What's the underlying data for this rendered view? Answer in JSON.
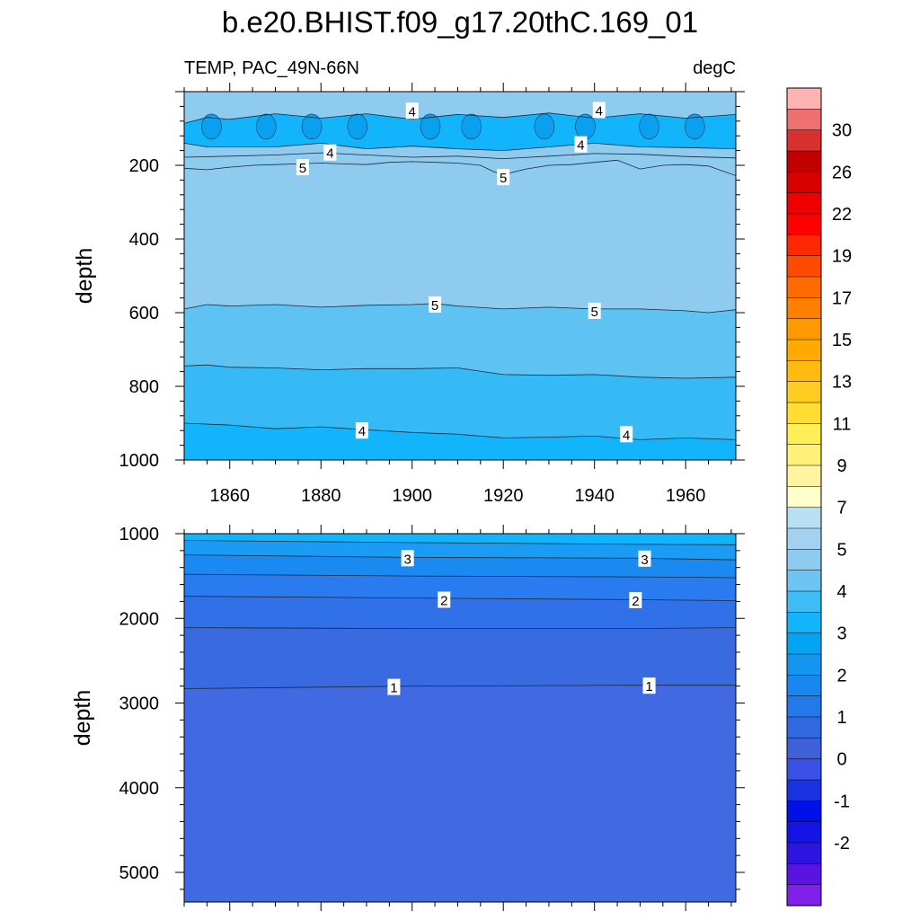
{
  "title": "b.e20.BHIST.f09_g17.20thC.169_01",
  "variable_label": "TEMP, PAC_49N-66N",
  "units_label": "degC",
  "chart_data": [
    {
      "type": "heatmap",
      "panel": "upper",
      "xlabel": "",
      "ylabel": "depth",
      "xlim": [
        1850,
        1971
      ],
      "ylim": [
        0,
        1000
      ],
      "y_inverted": true,
      "x_ticks": [
        "1860",
        "1880",
        "1900",
        "1920",
        "1940",
        "1960"
      ],
      "y_ticks": [
        "200",
        "400",
        "600",
        "800",
        "1000"
      ],
      "contours": [
        {
          "level": "4",
          "points": [
            [
              1850,
              86
            ],
            [
              1855,
              70
            ],
            [
              1860,
              75
            ],
            [
              1870,
              60
            ],
            [
              1880,
              72
            ],
            [
              1890,
              60
            ],
            [
              1900,
              75
            ],
            [
              1910,
              62
            ],
            [
              1920,
              70
            ],
            [
              1930,
              58
            ],
            [
              1940,
              72
            ],
            [
              1950,
              60
            ],
            [
              1960,
              72
            ],
            [
              1971,
              62
            ]
          ]
        },
        {
          "level": "4",
          "points": [
            [
              1850,
              140
            ],
            [
              1855,
              150
            ],
            [
              1860,
              150
            ],
            [
              1870,
              150
            ],
            [
              1880,
              140
            ],
            [
              1890,
              155
            ],
            [
              1900,
              148
            ],
            [
              1910,
              155
            ],
            [
              1920,
              160
            ],
            [
              1930,
              150
            ],
            [
              1940,
              140
            ],
            [
              1950,
              150
            ],
            [
              1960,
              152
            ],
            [
              1971,
              155
            ]
          ]
        },
        {
          "level": "4",
          "points": [
            [
              1850,
              178
            ],
            [
              1860,
              175
            ],
            [
              1870,
              172
            ],
            [
              1880,
              166
            ],
            [
              1890,
              172
            ],
            [
              1900,
              178
            ],
            [
              1910,
              175
            ],
            [
              1920,
              182
            ],
            [
              1930,
              175
            ],
            [
              1940,
              168
            ],
            [
              1950,
              170
            ],
            [
              1960,
              176
            ],
            [
              1971,
              180
            ]
          ]
        },
        {
          "level": "5",
          "points": [
            [
              1850,
              208
            ],
            [
              1855,
              212
            ],
            [
              1860,
              205
            ],
            [
              1865,
              200
            ],
            [
              1870,
              198
            ],
            [
              1875,
              196
            ],
            [
              1880,
              194
            ],
            [
              1885,
              196
            ],
            [
              1890,
              198
            ],
            [
              1895,
              192
            ],
            [
              1900,
              190
            ],
            [
              1905,
              192
            ],
            [
              1910,
              194
            ],
            [
              1915,
              200
            ],
            [
              1918,
              218
            ],
            [
              1920,
              225
            ],
            [
              1925,
              210
            ],
            [
              1930,
              200
            ],
            [
              1935,
              198
            ],
            [
              1940,
              192
            ],
            [
              1945,
              186
            ],
            [
              1950,
              210
            ],
            [
              1955,
              200
            ],
            [
              1960,
              198
            ],
            [
              1965,
              202
            ],
            [
              1971,
              228
            ]
          ]
        },
        {
          "level": "5",
          "points": [
            [
              1850,
              590
            ],
            [
              1855,
              578
            ],
            [
              1860,
              582
            ],
            [
              1870,
              578
            ],
            [
              1880,
              585
            ],
            [
              1890,
              580
            ],
            [
              1900,
              578
            ],
            [
              1905,
              575
            ],
            [
              1910,
              582
            ],
            [
              1920,
              590
            ],
            [
              1930,
              585
            ],
            [
              1940,
              590
            ],
            [
              1950,
              590
            ],
            [
              1960,
              595
            ],
            [
              1965,
              600
            ],
            [
              1971,
              592
            ]
          ]
        },
        {
          "level": "4",
          "points": [
            [
              1850,
              745
            ],
            [
              1855,
              742
            ],
            [
              1860,
              748
            ],
            [
              1870,
              750
            ],
            [
              1880,
              755
            ],
            [
              1890,
              752
            ],
            [
              1900,
              752
            ],
            [
              1910,
              750
            ],
            [
              1920,
              768
            ],
            [
              1930,
              770
            ],
            [
              1940,
              768
            ],
            [
              1950,
              775
            ],
            [
              1960,
              778
            ],
            [
              1971,
              775
            ]
          ]
        },
        {
          "level": "4",
          "points": [
            [
              1850,
              900
            ],
            [
              1860,
              905
            ],
            [
              1870,
              915
            ],
            [
              1880,
              910
            ],
            [
              1890,
              918
            ],
            [
              1900,
              925
            ],
            [
              1910,
              930
            ],
            [
              1920,
              940
            ],
            [
              1930,
              938
            ],
            [
              1940,
              935
            ],
            [
              1950,
              945
            ],
            [
              1960,
              940
            ],
            [
              1971,
              945
            ]
          ]
        }
      ],
      "contour_labels": [
        {
          "text": "4",
          "x": 1900,
          "y": 52
        },
        {
          "text": "4",
          "x": 1941,
          "y": 50
        },
        {
          "text": "4",
          "x": 1937,
          "y": 143
        },
        {
          "text": "4",
          "x": 1882,
          "y": 165
        },
        {
          "text": "5",
          "x": 1876,
          "y": 205
        },
        {
          "text": "5",
          "x": 1920,
          "y": 232
        },
        {
          "text": "5",
          "x": 1905,
          "y": 578
        },
        {
          "text": "5",
          "x": 1940,
          "y": 595
        },
        {
          "text": "4",
          "x": 1889,
          "y": 920
        },
        {
          "text": "4",
          "x": 1947,
          "y": 930
        }
      ]
    },
    {
      "type": "heatmap",
      "panel": "lower",
      "xlabel": "",
      "ylabel": "depth",
      "xlim": [
        1850,
        1971
      ],
      "ylim": [
        1000,
        5350
      ],
      "y_inverted": true,
      "x_ticks": [],
      "y_ticks": [
        "1000",
        "2000",
        "3000",
        "4000",
        "5000"
      ],
      "contours": [
        {
          "level": "3.5",
          "points": [
            [
              1850,
              1080
            ],
            [
              1900,
              1105
            ],
            [
              1950,
              1125
            ],
            [
              1971,
              1130
            ]
          ]
        },
        {
          "level": "3",
          "points": [
            [
              1850,
              1250
            ],
            [
              1900,
              1280
            ],
            [
              1950,
              1290
            ],
            [
              1971,
              1310
            ]
          ]
        },
        {
          "level": "2.5",
          "points": [
            [
              1850,
              1480
            ],
            [
              1900,
              1500
            ],
            [
              1950,
              1510
            ],
            [
              1971,
              1520
            ]
          ]
        },
        {
          "level": "2",
          "points": [
            [
              1850,
              1740
            ],
            [
              1900,
              1760
            ],
            [
              1950,
              1780
            ],
            [
              1971,
              1790
            ]
          ]
        },
        {
          "level": "1.5",
          "points": [
            [
              1850,
              2110
            ],
            [
              1900,
              2120
            ],
            [
              1950,
              2120
            ],
            [
              1971,
              2110
            ]
          ]
        },
        {
          "level": "1",
          "points": [
            [
              1850,
              2830
            ],
            [
              1900,
              2800
            ],
            [
              1950,
              2790
            ],
            [
              1971,
              2790
            ]
          ]
        }
      ],
      "contour_labels": [
        {
          "text": "3",
          "x": 1899,
          "y": 1290
        },
        {
          "text": "3",
          "x": 1951,
          "y": 1295
        },
        {
          "text": "2",
          "x": 1907,
          "y": 1780
        },
        {
          "text": "2",
          "x": 1949,
          "y": 1785
        },
        {
          "text": "1",
          "x": 1896,
          "y": 2810
        },
        {
          "text": "1",
          "x": 1952,
          "y": 2795
        }
      ]
    }
  ],
  "colorbar": {
    "labels": [
      "30",
      "26",
      "22",
      "19",
      "17",
      "15",
      "13",
      "11",
      "9",
      "7",
      "5",
      "4",
      "3",
      "2",
      "1",
      "0",
      "-1",
      "-2"
    ],
    "colors": [
      "#ffb3b3",
      "#ee7070",
      "#d93030",
      "#c20000",
      "#d90000",
      "#ee0000",
      "#ff0000",
      "#ff2800",
      "#ff4b00",
      "#ff6a00",
      "#ff8000",
      "#ff9900",
      "#ffaa00",
      "#ffbb10",
      "#ffcc22",
      "#ffdd33",
      "#ffee55",
      "#fff07a",
      "#fff5a0",
      "#ffffcc",
      "#b8e0f5",
      "#a2d2f0",
      "#8fcbee",
      "#6ec5f2",
      "#3cbef5",
      "#12b5fb",
      "#04a4f5",
      "#1496f0",
      "#1a87f0",
      "#2578e8",
      "#3068e0",
      "#4060d8",
      "#3a50e6",
      "#1a32e0",
      "#0010e8",
      "#1414e6",
      "#2e14e0",
      "#5a14e0",
      "#8020e8"
    ]
  }
}
